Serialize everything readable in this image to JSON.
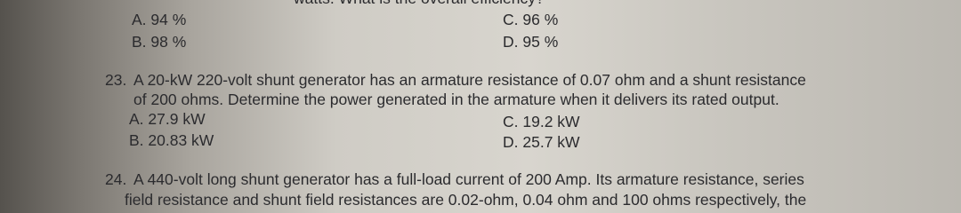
{
  "previous_question": {
    "text_tail": "watts. What is the overall efficiency?",
    "choices": [
      "A. 94 %",
      "B. 98 %",
      "C. 96 %",
      "D. 95 %"
    ]
  },
  "questions": [
    {
      "number": "23.",
      "lines": [
        "A 20-kW 220-volt shunt generator has an armature resistance of 0.07 ohm and a shunt resistance",
        "of 200 ohms. Determine the power generated in the armature when it delivers its rated output."
      ],
      "choices": [
        "A. 27.9 kW",
        "B. 20.83 kW",
        "C. 19.2 kW",
        "D. 25.7 kW"
      ]
    },
    {
      "number": "24.",
      "lines": [
        "A 440-volt long shunt generator has a full-load current of 200 Amp. Its armature resistance, series",
        "field resistance and shunt field resistances are 0.02-ohm, 0.04 ohm and 100 ohms respectively, the"
      ],
      "choices": []
    }
  ]
}
